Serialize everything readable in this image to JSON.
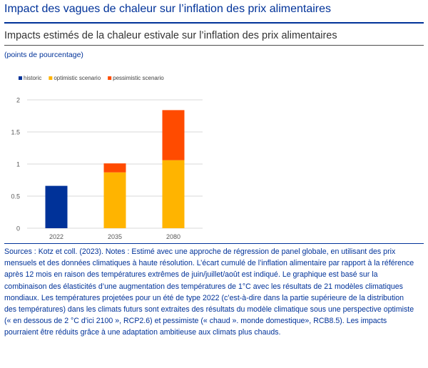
{
  "page": {
    "title": "Impact des vagues de chaleur sur l’inflation des prix alimentaires",
    "chart_title": "Impacts estimés de la chaleur estivale sur l’inflation des prix alimentaires",
    "units": "(points de pourcentage)",
    "notes": "Sources : Kotz et coll. (2023). Notes : Estimé avec une approche de régression de panel globale, en utilisant des prix mensuels et des données climatiques à haute résolution. L’écart cumulé de l’inflation alimentaire par rapport à la référence après 12 mois en raison des températures extrêmes de juin/juillet/août est indiqué. Le graphique est basé sur la combinaison des élasticités d’une augmentation des températures de 1°C avec les résultats de 21 modèles climatiques mondiaux. Les températures projetées pour un été de type 2022 (c’est-à-dire dans la partie supérieure de la distribution des températures) dans les climats futurs sont extraites des résultats du modèle climatique sous une perspective optimiste (« en dessous de 2 °C d'ici 2100 », RCP2.6) et pessimiste (« chaud ». monde domestique», RCB8.5). Les impacts pourraient être réduits grâce à une adaptation ambitieuse aux climats plus chauds."
  },
  "colors": {
    "title": "#003299",
    "historic": "#003299",
    "optimistic": "#FFB400",
    "pessimistic": "#FF4B00",
    "grid": "#d9d9d9",
    "tick": "#595959"
  },
  "chart_data": {
    "type": "bar",
    "stacked": true,
    "categories": [
      "2022",
      "2035",
      "2080"
    ],
    "series": [
      {
        "name": "historic",
        "values": [
          0.66,
          0,
          0
        ],
        "color": "#003299"
      },
      {
        "name": "optimistic scenario",
        "values": [
          0,
          0.87,
          1.06
        ],
        "color": "#FFB400"
      },
      {
        "name": "pessimistic scenario",
        "values": [
          0,
          0.14,
          0.78
        ],
        "color": "#FF4B00"
      }
    ],
    "yticks": [
      "0",
      "0.5",
      "1",
      "1.5",
      "2"
    ],
    "ylim": [
      0,
      2
    ],
    "grid": true,
    "legend": "top-left",
    "title": "",
    "xlabel": "",
    "ylabel": ""
  }
}
